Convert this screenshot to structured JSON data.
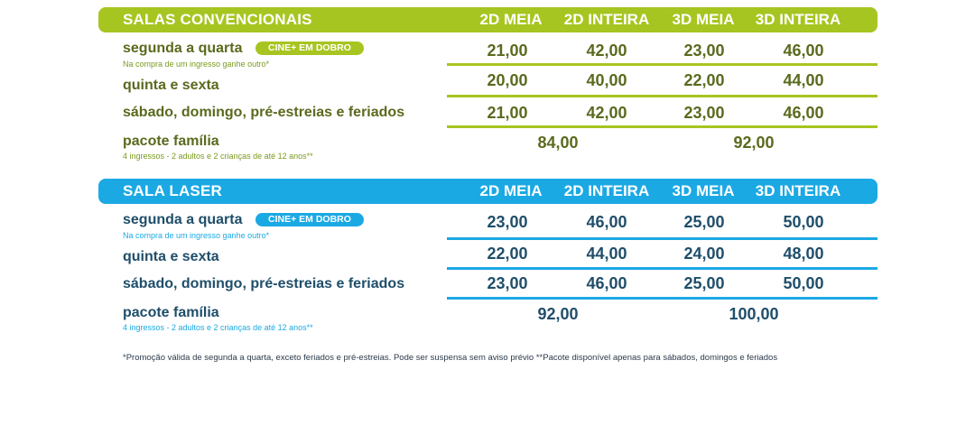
{
  "conv": {
    "title": "SALAS CONVENCIONAIS",
    "columns": [
      "2D MEIA",
      "2D INTEIRA",
      "3D MEIA",
      "3D INTEIRA"
    ],
    "badge": "CINE+ EM DOBRO",
    "rows": [
      {
        "label": "segunda a quarta",
        "note": "Na compra de um ingresso ganhe outro*",
        "prices": [
          "21,00",
          "42,00",
          "23,00",
          "46,00"
        ]
      },
      {
        "label": "quinta e sexta",
        "prices": [
          "20,00",
          "40,00",
          "22,00",
          "44,00"
        ]
      },
      {
        "label": "sábado, domingo, pré-estreias e feriados",
        "prices": [
          "21,00",
          "42,00",
          "23,00",
          "46,00"
        ]
      }
    ],
    "family": {
      "label": "pacote família",
      "note": "4 ingressos - 2 adultos e 2 crianças de até 12 anos**",
      "price_2d": "84,00",
      "price_3d": "92,00"
    },
    "colors": {
      "header": "#a7c520",
      "text": "#5a6a1e",
      "note": "#7a9a1e"
    }
  },
  "laser": {
    "title": "SALA LASER",
    "columns": [
      "2D MEIA",
      "2D INTEIRA",
      "3D MEIA",
      "3D INTEIRA"
    ],
    "badge": "CINE+ EM DOBRO",
    "rows": [
      {
        "label": "segunda a quarta",
        "note": "Na compra de um ingresso ganhe outro*",
        "prices": [
          "23,00",
          "46,00",
          "25,00",
          "50,00"
        ]
      },
      {
        "label": "quinta e sexta",
        "prices": [
          "22,00",
          "44,00",
          "24,00",
          "48,00"
        ]
      },
      {
        "label": "sábado, domingo, pré-estreias e feriados",
        "prices": [
          "23,00",
          "46,00",
          "25,00",
          "50,00"
        ]
      }
    ],
    "family": {
      "label": "pacote família",
      "note": "4 ingressos - 2 adultos e 2 crianças de até 12 anos**",
      "price_2d": "92,00",
      "price_3d": "100,00"
    },
    "colors": {
      "header": "#1ba9e4",
      "text": "#1f4e6a",
      "note": "#1ba9e4"
    }
  },
  "footnote": "*Promoção válida de segunda a quarta, exceto feriados e pré-estreias. Pode ser suspensa sem aviso prévio **Pacote disponível apenas para sábados, domingos e feriados"
}
